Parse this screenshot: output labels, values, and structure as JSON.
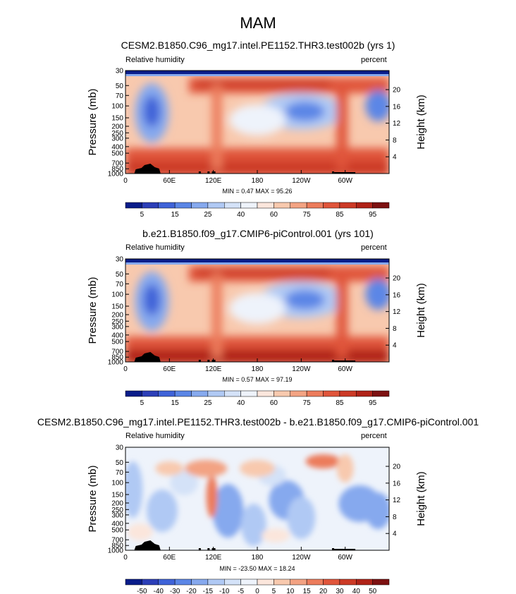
{
  "page": {
    "title": "MAM"
  },
  "colors": {
    "scale": [
      "#0a1d8a",
      "#2c3fb8",
      "#3f63d8",
      "#5b86e6",
      "#86a9ee",
      "#b0c9f4",
      "#d4e2f8",
      "#eef3fb",
      "#fbe6dc",
      "#f8c9ae",
      "#f3a383",
      "#ec7c5c",
      "#e0553b",
      "#cc3a26",
      "#b02318",
      "#7d1111"
    ],
    "land": "#000000"
  },
  "panels": [
    {
      "title": "CESM2.B1850.C96_mg17.intel.PE1152.THR3.test002b (yrs 1)",
      "left_label": "Relative humidity",
      "right_label": "percent",
      "minmax": "MIN =   0.47  MAX =  95.26",
      "colorbar_labels": [
        "5",
        "15",
        "25",
        "40",
        "60",
        "75",
        "85",
        "95"
      ]
    },
    {
      "title": "b.e21.B1850.f09_g17.CMIP6-piControl.001 (yrs 101)",
      "left_label": "Relative humidity",
      "right_label": "percent",
      "minmax": "MIN =   0.57  MAX =  97.19",
      "colorbar_labels": [
        "5",
        "15",
        "25",
        "40",
        "60",
        "75",
        "85",
        "95"
      ]
    },
    {
      "title": "CESM2.B1850.C96_mg17.intel.PE1152.THR3.test002b - b.e21.B1850.f09_g17.CMIP6-piControl.001",
      "left_label": "Relative humidity",
      "right_label": "percent",
      "minmax": "MIN = -23.50  MAX =  18.24",
      "colorbar_labels": [
        "-50",
        "-40",
        "-30",
        "-20",
        "-15",
        "-10",
        "-5",
        "0",
        "5",
        "10",
        "15",
        "20",
        "30",
        "40",
        "50"
      ]
    }
  ],
  "chart_data": [
    {
      "type": "heatmap",
      "title": "CESM2.B1850.C96_mg17.intel.PE1152.THR3.test002b (yrs 1)",
      "xlabel": "",
      "ylabel": "Pressure (mb)",
      "y2label": "Height (km)",
      "x_ticks": [
        "0",
        "60E",
        "120E",
        "180",
        "120W",
        "60W"
      ],
      "x_tick_lon": [
        0,
        60,
        120,
        180,
        240,
        300
      ],
      "y_ticks": [
        "1000",
        "850",
        "700",
        "500",
        "400",
        "300",
        "250",
        "200",
        "150",
        "100",
        "70",
        "50",
        "30"
      ],
      "y_ticks_p": [
        1000,
        850,
        700,
        500,
        400,
        300,
        250,
        200,
        150,
        100,
        70,
        50,
        30
      ],
      "y2_ticks": [
        "4",
        "8",
        "12",
        "16",
        "20"
      ],
      "y2_ticks_km": [
        4,
        8,
        12,
        16,
        20
      ],
      "ylim": [
        1000,
        30
      ],
      "xlim": [
        0,
        360
      ]
    },
    {
      "type": "heatmap",
      "title": "b.e21.B1850.f09_g17.CMIP6-piControl.001 (yrs 101)",
      "xlabel": "",
      "ylabel": "Pressure (mb)",
      "y2label": "Height (km)",
      "x_ticks": [
        "0",
        "60E",
        "120E",
        "180",
        "120W",
        "60W"
      ],
      "x_tick_lon": [
        0,
        60,
        120,
        180,
        240,
        300
      ],
      "y_ticks": [
        "1000",
        "850",
        "700",
        "500",
        "400",
        "300",
        "250",
        "200",
        "150",
        "100",
        "70",
        "50",
        "30"
      ],
      "y_ticks_p": [
        1000,
        850,
        700,
        500,
        400,
        300,
        250,
        200,
        150,
        100,
        70,
        50,
        30
      ],
      "y2_ticks": [
        "4",
        "8",
        "12",
        "16",
        "20"
      ],
      "y2_ticks_km": [
        4,
        8,
        12,
        16,
        20
      ],
      "ylim": [
        1000,
        30
      ],
      "xlim": [
        0,
        360
      ]
    },
    {
      "type": "heatmap",
      "title": "CESM2.B1850.C96_mg17.intel.PE1152.THR3.test002b - b.e21.B1850.f09_g17.CMIP6-piControl.001",
      "xlabel": "",
      "ylabel": "Pressure (mb)",
      "y2label": "Height (km)",
      "x_ticks": [
        "0",
        "60E",
        "120E",
        "180",
        "120W",
        "60W"
      ],
      "x_tick_lon": [
        0,
        60,
        120,
        180,
        240,
        300
      ],
      "y_ticks": [
        "1000",
        "850",
        "700",
        "500",
        "400",
        "300",
        "250",
        "200",
        "150",
        "100",
        "70",
        "50",
        "30"
      ],
      "y_ticks_p": [
        1000,
        850,
        700,
        500,
        400,
        300,
        250,
        200,
        150,
        100,
        70,
        50,
        30
      ],
      "y2_ticks": [
        "4",
        "8",
        "12",
        "16",
        "20"
      ],
      "y2_ticks_km": [
        4,
        8,
        12,
        16,
        20
      ],
      "ylim": [
        1000,
        30
      ],
      "xlim": [
        0,
        360
      ]
    }
  ]
}
